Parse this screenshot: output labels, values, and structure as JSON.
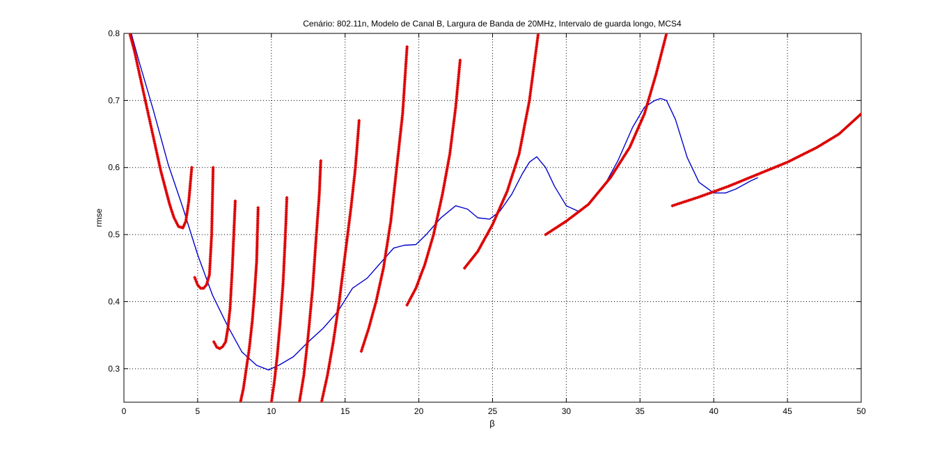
{
  "chart_data": {
    "type": "scatter",
    "title": "Cenário: 802.11n, Modelo de Canal B, Largura de Banda de 20MHz, Intervalo de guarda longo, MCS4",
    "xlabel": "β",
    "ylabel": "rmse",
    "xlim": [
      0,
      50
    ],
    "ylim": [
      0.25,
      0.8
    ],
    "xticks": [
      0,
      5,
      10,
      15,
      20,
      25,
      30,
      35,
      40,
      45,
      50
    ],
    "yticks": [
      0.3,
      0.4,
      0.5,
      0.6,
      0.7,
      0.8
    ],
    "xtick_labels": [
      "0",
      "5",
      "10",
      "15",
      "20",
      "25",
      "30",
      "35",
      "40",
      "45",
      "50"
    ],
    "ytick_labels": [
      "0.3",
      "0.4",
      "0.5",
      "0.6",
      "0.7",
      "0.8"
    ],
    "grid": true,
    "colors": {
      "line": "#0000cc",
      "markers": "#dd0000"
    },
    "series": [
      {
        "style": "line",
        "x": [
          0.5,
          1,
          2,
          3,
          4,
          5,
          6,
          7,
          8,
          9,
          9.8,
          10.5,
          11.5,
          12.5,
          13.5,
          14.5,
          15.5,
          16.5,
          17.5,
          18.3,
          19,
          19.8,
          20.5,
          21.5,
          22.5,
          23.3,
          24,
          24.8,
          25.5,
          26.3,
          27,
          27.5,
          28,
          28.6,
          29.2,
          30,
          30.8,
          31.5,
          32.5,
          33.5,
          34.5,
          35.3,
          36,
          36.4,
          36.8,
          37.4,
          38.2,
          39,
          40,
          40.8,
          41.5,
          42.5,
          43
        ],
        "y": [
          0.8,
          0.76,
          0.685,
          0.605,
          0.54,
          0.47,
          0.41,
          0.365,
          0.325,
          0.305,
          0.298,
          0.305,
          0.318,
          0.34,
          0.36,
          0.385,
          0.42,
          0.435,
          0.46,
          0.48,
          0.484,
          0.485,
          0.5,
          0.525,
          0.543,
          0.538,
          0.525,
          0.523,
          0.535,
          0.56,
          0.59,
          0.608,
          0.616,
          0.6,
          0.572,
          0.543,
          0.535,
          0.545,
          0.57,
          0.61,
          0.66,
          0.69,
          0.7,
          0.703,
          0.7,
          0.672,
          0.615,
          0.578,
          0.562,
          0.562,
          0.568,
          0.58,
          0.585
        ]
      },
      {
        "style": "markers",
        "name": "",
        "segments": [
          {
            "x": [
              0.4,
              0.7,
              1.0,
              1.3,
              1.6,
              1.9,
              2.2,
              2.5,
              2.8,
              3.1,
              3.4,
              3.7,
              4.0,
              4.2,
              4.4,
              4.6
            ],
            "y": [
              0.8,
              0.775,
              0.745,
              0.715,
              0.685,
              0.655,
              0.625,
              0.595,
              0.57,
              0.545,
              0.525,
              0.512,
              0.51,
              0.52,
              0.55,
              0.6
            ]
          },
          {
            "x": [
              4.8,
              5.0,
              5.2,
              5.4,
              5.6,
              5.8,
              5.95,
              6.05
            ],
            "y": [
              0.436,
              0.425,
              0.42,
              0.42,
              0.425,
              0.44,
              0.5,
              0.6
            ]
          },
          {
            "x": [
              6.1,
              6.3,
              6.5,
              6.7,
              6.9,
              7.05,
              7.2,
              7.35,
              7.45,
              7.55
            ],
            "y": [
              0.34,
              0.332,
              0.33,
              0.333,
              0.34,
              0.36,
              0.39,
              0.45,
              0.5,
              0.55
            ]
          },
          {
            "x": [
              7.9,
              8.1,
              8.3,
              8.5,
              8.7,
              8.85,
              9.0,
              9.1
            ],
            "y": [
              0.25,
              0.27,
              0.3,
              0.33,
              0.37,
              0.41,
              0.46,
              0.54
            ]
          },
          {
            "x": [
              10.0,
              10.2,
              10.4,
              10.6,
              10.8,
              10.95,
              11.05
            ],
            "y": [
              0.25,
              0.28,
              0.32,
              0.37,
              0.43,
              0.5,
              0.555
            ]
          },
          {
            "x": [
              11.9,
              12.2,
              12.5,
              12.8,
              13.05,
              13.25,
              13.35
            ],
            "y": [
              0.25,
              0.29,
              0.35,
              0.42,
              0.5,
              0.56,
              0.61
            ]
          },
          {
            "x": [
              13.4,
              13.8,
              14.2,
              14.6,
              15.0,
              15.4,
              15.7,
              15.95
            ],
            "y": [
              0.25,
              0.29,
              0.34,
              0.4,
              0.47,
              0.54,
              0.6,
              0.67
            ]
          },
          {
            "x": [
              16.1,
              16.6,
              17.1,
              17.6,
              18.1,
              18.5,
              18.9,
              19.2
            ],
            "y": [
              0.326,
              0.36,
              0.4,
              0.45,
              0.52,
              0.6,
              0.68,
              0.78
            ]
          },
          {
            "x": [
              19.2,
              19.8,
              20.4,
              21.0,
              21.6,
              22.1,
              22.5,
              22.8
            ],
            "y": [
              0.395,
              0.42,
              0.455,
              0.5,
              0.56,
              0.62,
              0.69,
              0.76
            ]
          },
          {
            "x": [
              23.1,
              24.0,
              25.0,
              26.0,
              26.8,
              27.5,
              28.1
            ],
            "y": [
              0.45,
              0.475,
              0.515,
              0.565,
              0.62,
              0.7,
              0.8
            ]
          },
          {
            "x": [
              28.6,
              30.0,
              31.5,
              33.0,
              34.3,
              35.3,
              36.1,
              36.8
            ],
            "y": [
              0.5,
              0.52,
              0.545,
              0.585,
              0.63,
              0.68,
              0.74,
              0.8
            ]
          },
          {
            "x": [
              37.2,
              39.0,
              41.0,
              43.0,
              45.0,
              47.0,
              48.5,
              50.0
            ],
            "y": [
              0.543,
              0.556,
              0.572,
              0.59,
              0.608,
              0.63,
              0.65,
              0.68
            ]
          }
        ]
      }
    ]
  }
}
